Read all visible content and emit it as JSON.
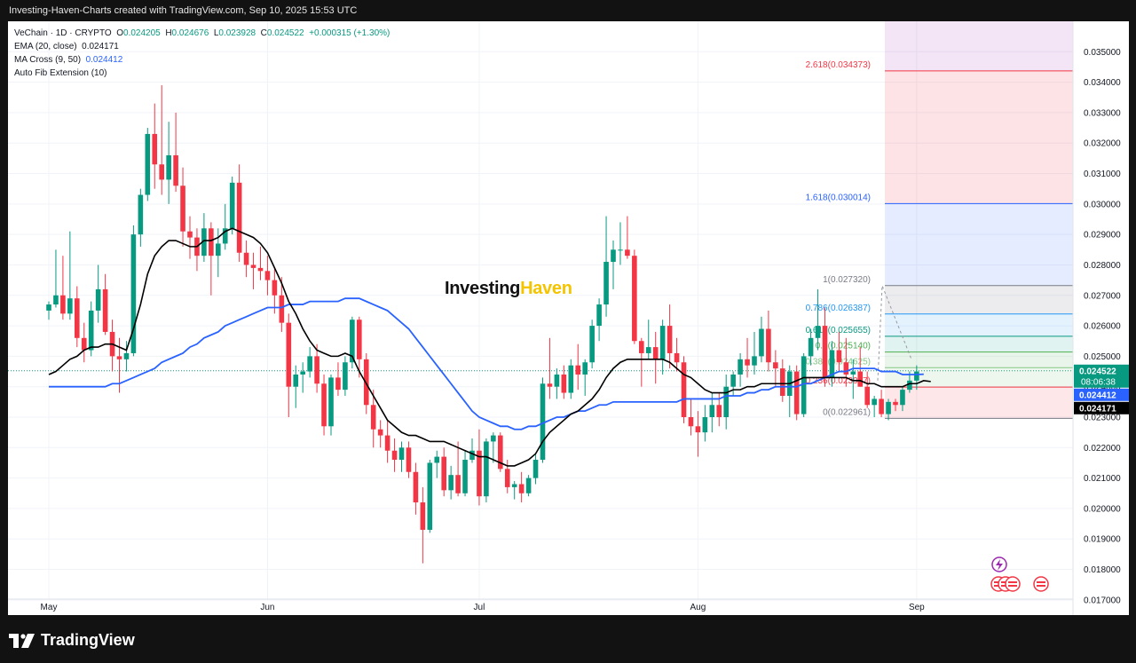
{
  "header": {
    "caption": "Investing-Haven-Charts created with TradingView.com, Sep 10, 2025 15:53 UTC"
  },
  "legend": {
    "symbol": "VeChain · 1D · CRYPTO",
    "o_label": "O",
    "o": "0.024205",
    "h_label": "H",
    "h": "0.024676",
    "l_label": "L",
    "l": "0.023928",
    "c_label": "C",
    "c": "0.024522",
    "change": "+0.000315 (+1.30%)",
    "ema": "EMA (20, close)",
    "ema_value": "0.024171",
    "ma": "MA Cross (9, 50)",
    "ma_value": "0.024412",
    "fib": "Auto Fib Extension (10)"
  },
  "watermark": {
    "part1": "Investing",
    "part2": "Haven"
  },
  "footer": {
    "brand": "TradingView"
  },
  "colors": {
    "up": "#089981",
    "down": "#f23645",
    "ema": "#000000",
    "ma": "#2962ff"
  },
  "chart_data": {
    "type": "candlestick",
    "title": "VeChain · 1D · CRYPTO",
    "ylim": [
      0.0165,
      0.036
    ],
    "y_ticks": [
      "0.017000",
      "0.018000",
      "0.019000",
      "0.020000",
      "0.021000",
      "0.022000",
      "0.023000",
      "0.024000",
      "0.025000",
      "0.026000",
      "0.027000",
      "0.028000",
      "0.029000",
      "0.030000",
      "0.031000",
      "0.032000",
      "0.033000",
      "0.034000",
      "0.035000"
    ],
    "x_ticks": [
      {
        "label": "May",
        "index": 0
      },
      {
        "label": "Jun",
        "index": 31
      },
      {
        "label": "Jul",
        "index": 61
      },
      {
        "label": "Aug",
        "index": 92
      },
      {
        "label": "Sep",
        "index": 123
      }
    ],
    "candles": [
      [
        0.0265,
        0.0268,
        0.0262,
        0.0267
      ],
      [
        0.0267,
        0.0285,
        0.0266,
        0.027
      ],
      [
        0.027,
        0.0283,
        0.0262,
        0.0264
      ],
      [
        0.0264,
        0.0291,
        0.0262,
        0.0269
      ],
      [
        0.0269,
        0.0273,
        0.0253,
        0.0256
      ],
      [
        0.0256,
        0.0261,
        0.0248,
        0.0252
      ],
      [
        0.0252,
        0.0268,
        0.025,
        0.0265
      ],
      [
        0.0265,
        0.028,
        0.0261,
        0.0272
      ],
      [
        0.0272,
        0.0277,
        0.0257,
        0.0258
      ],
      [
        0.0258,
        0.0262,
        0.0245,
        0.025
      ],
      [
        0.025,
        0.0256,
        0.0238,
        0.0249
      ],
      [
        0.0249,
        0.0255,
        0.0245,
        0.0251
      ],
      [
        0.0251,
        0.0293,
        0.025,
        0.029
      ],
      [
        0.029,
        0.0305,
        0.0286,
        0.0303
      ],
      [
        0.0303,
        0.0325,
        0.0301,
        0.0323
      ],
      [
        0.0323,
        0.0333,
        0.0305,
        0.0313
      ],
      [
        0.0313,
        0.0339,
        0.0303,
        0.0308
      ],
      [
        0.0308,
        0.0327,
        0.03,
        0.0316
      ],
      [
        0.0316,
        0.033,
        0.0304,
        0.0306
      ],
      [
        0.0306,
        0.0312,
        0.0286,
        0.0291
      ],
      [
        0.0291,
        0.0296,
        0.0282,
        0.0289
      ],
      [
        0.0289,
        0.0292,
        0.0278,
        0.0283
      ],
      [
        0.0283,
        0.0297,
        0.0281,
        0.0292
      ],
      [
        0.0292,
        0.0294,
        0.027,
        0.0283
      ],
      [
        0.0283,
        0.0292,
        0.0276,
        0.0287
      ],
      [
        0.0287,
        0.03,
        0.0285,
        0.0292
      ],
      [
        0.0292,
        0.0309,
        0.029,
        0.0307
      ],
      [
        0.0307,
        0.0313,
        0.0281,
        0.0284
      ],
      [
        0.0284,
        0.0288,
        0.0276,
        0.028
      ],
      [
        0.028,
        0.0284,
        0.0272,
        0.0279
      ],
      [
        0.0279,
        0.0286,
        0.0275,
        0.0278
      ],
      [
        0.0278,
        0.0283,
        0.027,
        0.0275
      ],
      [
        0.0275,
        0.0279,
        0.0264,
        0.027
      ],
      [
        0.027,
        0.0276,
        0.0258,
        0.0261
      ],
      [
        0.0261,
        0.0264,
        0.023,
        0.024
      ],
      [
        0.024,
        0.0247,
        0.0233,
        0.0244
      ],
      [
        0.0244,
        0.0248,
        0.0238,
        0.0245
      ],
      [
        0.0245,
        0.0253,
        0.0243,
        0.025
      ],
      [
        0.025,
        0.0254,
        0.0238,
        0.0241
      ],
      [
        0.0241,
        0.0244,
        0.0224,
        0.0227
      ],
      [
        0.0227,
        0.0244,
        0.0224,
        0.0243
      ],
      [
        0.0243,
        0.0248,
        0.0237,
        0.0239
      ],
      [
        0.0239,
        0.025,
        0.0237,
        0.0248
      ],
      [
        0.0248,
        0.0263,
        0.0246,
        0.0262
      ],
      [
        0.0262,
        0.0263,
        0.0243,
        0.0249
      ],
      [
        0.0249,
        0.0251,
        0.0231,
        0.0234
      ],
      [
        0.0234,
        0.0239,
        0.022,
        0.0226
      ],
      [
        0.0226,
        0.0229,
        0.022,
        0.0224
      ],
      [
        0.0224,
        0.0229,
        0.0215,
        0.0219
      ],
      [
        0.0219,
        0.0223,
        0.0212,
        0.0216
      ],
      [
        0.0216,
        0.0222,
        0.0212,
        0.022
      ],
      [
        0.022,
        0.0222,
        0.021,
        0.0212
      ],
      [
        0.0212,
        0.0215,
        0.0198,
        0.0202
      ],
      [
        0.0202,
        0.0207,
        0.0182,
        0.0193
      ],
      [
        0.0193,
        0.0216,
        0.0192,
        0.0215
      ],
      [
        0.0215,
        0.0219,
        0.021,
        0.0217
      ],
      [
        0.0217,
        0.022,
        0.0204,
        0.0206
      ],
      [
        0.0206,
        0.0214,
        0.0203,
        0.0211
      ],
      [
        0.0211,
        0.0222,
        0.0204,
        0.0205
      ],
      [
        0.0205,
        0.0219,
        0.0204,
        0.0216
      ],
      [
        0.0216,
        0.0223,
        0.0215,
        0.0219
      ],
      [
        0.0219,
        0.0226,
        0.0201,
        0.0204
      ],
      [
        0.0204,
        0.0223,
        0.0202,
        0.0222
      ],
      [
        0.0222,
        0.0225,
        0.0215,
        0.0224
      ],
      [
        0.0224,
        0.0225,
        0.0212,
        0.0213
      ],
      [
        0.0213,
        0.0216,
        0.0205,
        0.0207
      ],
      [
        0.0207,
        0.0209,
        0.0203,
        0.0208
      ],
      [
        0.0208,
        0.0212,
        0.0202,
        0.0205
      ],
      [
        0.0205,
        0.0211,
        0.0204,
        0.021
      ],
      [
        0.021,
        0.0218,
        0.0208,
        0.0216
      ],
      [
        0.0216,
        0.0243,
        0.0215,
        0.0241
      ],
      [
        0.0241,
        0.0256,
        0.0236,
        0.024
      ],
      [
        0.024,
        0.0246,
        0.0236,
        0.0244
      ],
      [
        0.0244,
        0.0247,
        0.0236,
        0.0238
      ],
      [
        0.0238,
        0.0249,
        0.0236,
        0.0247
      ],
      [
        0.0247,
        0.0254,
        0.0239,
        0.0244
      ],
      [
        0.0244,
        0.0249,
        0.0237,
        0.0248
      ],
      [
        0.0248,
        0.0262,
        0.0246,
        0.026
      ],
      [
        0.026,
        0.0269,
        0.0255,
        0.0267
      ],
      [
        0.0267,
        0.0296,
        0.0263,
        0.0281
      ],
      [
        0.0281,
        0.0288,
        0.0272,
        0.0285
      ],
      [
        0.0285,
        0.0294,
        0.028,
        0.0285
      ],
      [
        0.0285,
        0.0296,
        0.0282,
        0.0283
      ],
      [
        0.0283,
        0.0285,
        0.0254,
        0.0255
      ],
      [
        0.0255,
        0.0256,
        0.024,
        0.0251
      ],
      [
        0.0251,
        0.0262,
        0.0249,
        0.0253
      ],
      [
        0.0253,
        0.0258,
        0.0241,
        0.0249
      ],
      [
        0.0249,
        0.0262,
        0.0244,
        0.026
      ],
      [
        0.026,
        0.0267,
        0.0246,
        0.0251
      ],
      [
        0.0251,
        0.0256,
        0.0245,
        0.0248
      ],
      [
        0.0248,
        0.025,
        0.0228,
        0.023
      ],
      [
        0.023,
        0.0236,
        0.0224,
        0.0227
      ],
      [
        0.0227,
        0.0232,
        0.0217,
        0.0225
      ],
      [
        0.0225,
        0.0234,
        0.0222,
        0.023
      ],
      [
        0.023,
        0.0238,
        0.0225,
        0.0234
      ],
      [
        0.0234,
        0.0238,
        0.0227,
        0.023
      ],
      [
        0.023,
        0.0244,
        0.0226,
        0.024
      ],
      [
        0.024,
        0.0245,
        0.0237,
        0.0244
      ],
      [
        0.0244,
        0.0251,
        0.024,
        0.0249
      ],
      [
        0.0249,
        0.0256,
        0.0243,
        0.0247
      ],
      [
        0.0247,
        0.0258,
        0.0244,
        0.025
      ],
      [
        0.025,
        0.0263,
        0.0248,
        0.0259
      ],
      [
        0.0259,
        0.0265,
        0.0245,
        0.0248
      ],
      [
        0.0248,
        0.0252,
        0.024,
        0.0246
      ],
      [
        0.0246,
        0.0249,
        0.0235,
        0.0237
      ],
      [
        0.0237,
        0.0247,
        0.023,
        0.0245
      ],
      [
        0.0245,
        0.0247,
        0.0229,
        0.0231
      ],
      [
        0.0231,
        0.0251,
        0.023,
        0.025
      ],
      [
        0.025,
        0.0259,
        0.0247,
        0.0256
      ],
      [
        0.0256,
        0.0272,
        0.0252,
        0.026
      ],
      [
        0.026,
        0.0266,
        0.024,
        0.0243
      ],
      [
        0.0243,
        0.0255,
        0.024,
        0.0252
      ],
      [
        0.0252,
        0.0258,
        0.0245,
        0.0248
      ],
      [
        0.0248,
        0.0256,
        0.024,
        0.0244
      ],
      [
        0.0244,
        0.0249,
        0.0236,
        0.0245
      ],
      [
        0.0245,
        0.0253,
        0.024,
        0.024
      ],
      [
        0.024,
        0.0245,
        0.0233,
        0.0234
      ],
      [
        0.0234,
        0.0237,
        0.023,
        0.0236
      ],
      [
        0.0236,
        0.0239,
        0.023,
        0.0231
      ],
      [
        0.0231,
        0.0236,
        0.0229,
        0.0235
      ],
      [
        0.0235,
        0.0236,
        0.0232,
        0.0234
      ],
      [
        0.0234,
        0.024,
        0.0232,
        0.0239
      ],
      [
        0.0239,
        0.0245,
        0.0238,
        0.0242
      ],
      [
        0.0242,
        0.0247,
        0.0239,
        0.0245
      ]
    ],
    "ema_20": [
      0.0244,
      0.0245,
      0.0247,
      0.0249,
      0.025,
      0.0252,
      0.0253,
      0.0253,
      0.0254,
      0.0254,
      0.0253,
      0.0252,
      0.0259,
      0.0267,
      0.0277,
      0.0283,
      0.0286,
      0.0288,
      0.0288,
      0.0287,
      0.0286,
      0.0286,
      0.0288,
      0.0288,
      0.0289,
      0.0291,
      0.0292,
      0.0291,
      0.029,
      0.0289,
      0.0287,
      0.0284,
      0.0279,
      0.0274,
      0.0268,
      0.0264,
      0.0259,
      0.0255,
      0.0252,
      0.0251,
      0.025,
      0.025,
      0.0251,
      0.025,
      0.0245,
      0.0241,
      0.0237,
      0.0233,
      0.0229,
      0.0227,
      0.0225,
      0.0224,
      0.0224,
      0.0223,
      0.0222,
      0.0222,
      0.0222,
      0.0221,
      0.022,
      0.0219,
      0.0218,
      0.0217,
      0.0217,
      0.0216,
      0.0215,
      0.0214,
      0.0214,
      0.0215,
      0.0216,
      0.0218,
      0.0222,
      0.0225,
      0.0227,
      0.0229,
      0.0231,
      0.0232,
      0.0234,
      0.0236,
      0.0239,
      0.0243,
      0.0246,
      0.0248,
      0.0249,
      0.0249,
      0.0249,
      0.0249,
      0.0249,
      0.0249,
      0.0248,
      0.0246,
      0.0244,
      0.0243,
      0.0241,
      0.0239,
      0.0238,
      0.0238,
      0.0238,
      0.0239,
      0.0239,
      0.024,
      0.024,
      0.0241,
      0.0241,
      0.0241,
      0.0241,
      0.0241,
      0.0242,
      0.0243,
      0.0243,
      0.0243,
      0.0243,
      0.0243,
      0.0243,
      0.0243,
      0.0242,
      0.0242,
      0.0241,
      0.0241,
      0.024,
      0.024,
      0.024,
      0.024,
      0.0241,
      0.0241,
      0.0242,
      0.02417
    ],
    "ma_50": [
      0.024,
      0.024,
      0.024,
      0.024,
      0.024,
      0.024,
      0.024,
      0.024,
      0.024,
      0.0241,
      0.0241,
      0.0242,
      0.0243,
      0.0244,
      0.0245,
      0.0246,
      0.0248,
      0.0249,
      0.025,
      0.0251,
      0.0253,
      0.0254,
      0.0256,
      0.0257,
      0.0258,
      0.026,
      0.0261,
      0.0262,
      0.0263,
      0.0264,
      0.0265,
      0.0266,
      0.0266,
      0.0266,
      0.0267,
      0.0267,
      0.0267,
      0.0268,
      0.0268,
      0.0268,
      0.0268,
      0.0268,
      0.0269,
      0.0269,
      0.0269,
      0.0268,
      0.0267,
      0.0266,
      0.0265,
      0.0263,
      0.0261,
      0.0259,
      0.0256,
      0.0253,
      0.025,
      0.0247,
      0.0244,
      0.0241,
      0.0238,
      0.0235,
      0.0232,
      0.023,
      0.0229,
      0.0228,
      0.0227,
      0.0227,
      0.0226,
      0.0226,
      0.0227,
      0.0227,
      0.0228,
      0.0229,
      0.023,
      0.023,
      0.0231,
      0.0232,
      0.0232,
      0.0233,
      0.0234,
      0.0234,
      0.0235,
      0.0235,
      0.0235,
      0.0235,
      0.0235,
      0.0235,
      0.0235,
      0.0235,
      0.0235,
      0.0235,
      0.0236,
      0.0236,
      0.0236,
      0.0236,
      0.0236,
      0.0236,
      0.0237,
      0.0237,
      0.0237,
      0.0238,
      0.0238,
      0.0239,
      0.0239,
      0.024,
      0.024,
      0.024,
      0.024,
      0.0241,
      0.0241,
      0.0242,
      0.0243,
      0.0244,
      0.0245,
      0.0245,
      0.0246,
      0.0246,
      0.0246,
      0.0246,
      0.0245,
      0.0245,
      0.0245,
      0.0244,
      0.0244,
      0.0244,
      0.02441
    ],
    "fib_levels": [
      {
        "label": "2.618(0.034373)",
        "value": 0.034373,
        "color": "#f23645"
      },
      {
        "label": "1.618(0.030014)",
        "value": 0.030014,
        "color": "#2962ff"
      },
      {
        "label": "1(0.027320)",
        "value": 0.02732,
        "color": "#787b86"
      },
      {
        "label": "0.786(0.026387)",
        "value": 0.026387,
        "color": "#2196f3"
      },
      {
        "label": "0.618(0.025655)",
        "value": 0.025655,
        "color": "#089981"
      },
      {
        "label": "0.5(0.025140)",
        "value": 0.02514,
        "color": "#4caf50"
      },
      {
        "label": "0.382(0.024625)",
        "value": 0.024625,
        "color": "#81c784"
      },
      {
        "label": "0.236(0.023987)",
        "value": 0.023987,
        "color": "#f23645"
      },
      {
        "label": "0(0.022961)",
        "value": 0.022961,
        "color": "#787b86"
      }
    ],
    "price_labels": [
      {
        "text": "0.024522",
        "sub": "08:06:38",
        "value": 0.024522,
        "color": "#089981"
      },
      {
        "text": "0.024412",
        "value": 0.024412,
        "color": "#2962ff"
      },
      {
        "text": "0.024171",
        "value": 0.024171,
        "color": "#000000"
      }
    ]
  }
}
